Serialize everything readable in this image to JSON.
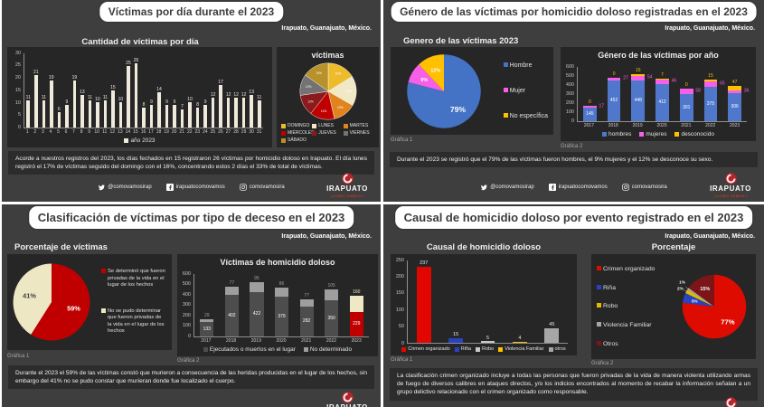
{
  "page": {
    "background": "#3e3e3e",
    "divider": "#ffffff",
    "chart_panel_bg": "#262626"
  },
  "footer": {
    "twitter_handle": "@comovamosirap",
    "facebook_handle": "irapuatocomovamos",
    "instagram_handle": "comovamosira",
    "logo_title": "IRAPUATO",
    "logo_subtitle": "¿CÓMO VAMOS?"
  },
  "panels": [
    {
      "title": "Víctimas por día durante el 2023",
      "location": "Irapuato, Guanajuato, México.",
      "note": "Acorde a nuestros registros del 2023, los días fechados en 15 registraron 26 víctimas por homicidio doloso en Irapuato. El día lunes registró el 17% de víctimas seguido del domingo con el 16%, concentrando estos 2 días el 33% de total de víctimas."
    },
    {
      "title": "Género de las víctimas por homicidio doloso registradas en el 2023",
      "location": "Irapuato, Guanajuato, México.",
      "grafica1": "Gráfica 1",
      "grafica2": "Gráfica 2",
      "note": "Durante el 2023 se registró que el 79% de las víctimas fueron hombres, el 9% mujeres y el 12% se desconoce su sexo."
    },
    {
      "title": "Clasificación de víctimas por tipo de deceso en el 2023",
      "location": "Irapuato, Guanajuato, México.",
      "grafica1": "Gráfica 1",
      "grafica2": "Gráfica 2",
      "note": "Durante el 2023 el 59% de las víctimas constó que murieron a consecuencia de las heridas producidas en el lugar de los hechos, sin embargo del 41% no se pudo constar que murieran donde fue localizado el cuerpo."
    },
    {
      "title": "Causal de homicidio doloso por evento registrado en el 2023",
      "location": "Irapuato, Guanajuato, México.",
      "grafica1": "Gráfica 1",
      "grafica2": "Gráfica 2",
      "note": "La clasificación crimen organizado incluye a todas las personas que fueron privadas de la vida de manera violenta utilizando armas de fuego de diversos calibres en ataques directos, y/o los indicios encontrados al momento de recabar la información señalan a un grupo delictivo relacionado con el crimen organizado como responsable."
    }
  ],
  "chart_data": [
    {
      "id": "victimas-por-dia",
      "type": "bar",
      "title": "Cantidad de víctimas por día",
      "categories": [
        "1",
        "2",
        "3",
        "4",
        "5",
        "6",
        "7",
        "8",
        "9",
        "10",
        "11",
        "12",
        "13",
        "14",
        "15",
        "16",
        "17",
        "18",
        "19",
        "20",
        "21",
        "22",
        "23",
        "24",
        "25",
        "26",
        "27",
        "28",
        "29",
        "30",
        "31"
      ],
      "values": [
        11,
        21,
        11,
        19,
        6,
        9,
        19,
        13,
        11,
        10,
        11,
        15,
        10,
        25,
        26,
        8,
        9,
        14,
        9,
        9,
        7,
        10,
        8,
        9,
        12,
        17,
        12,
        12,
        12,
        13,
        11
      ],
      "ylim": [
        0,
        30
      ],
      "yticks": [
        0,
        5,
        10,
        15,
        20,
        25,
        30
      ],
      "bar_color": "#efeadb",
      "show_xlabels": true,
      "legend": [
        {
          "label": "año 2023",
          "color": "#efeadb"
        }
      ]
    },
    {
      "id": "victimas-dia-semana",
      "type": "pie",
      "title": "víctimas",
      "label_size": 5.5,
      "label_r": 0.72,
      "stroke": "#ffffff",
      "stroke_w": 0.7,
      "legend_pos": "bottom",
      "legend_class": "grid",
      "slices": [
        {
          "label": "DOMINGO",
          "value": 16,
          "color": "#eebb2d"
        },
        {
          "label": "LUNES",
          "value": 17,
          "color": "#f1e9c6"
        },
        {
          "label": "MARTES",
          "value": 13,
          "color": "#e2841e"
        },
        {
          "label": "MIÉRCOLES",
          "value": 14,
          "color": "#c00000"
        },
        {
          "label": "JUEVES",
          "value": 12,
          "color": "#8b1a1d"
        },
        {
          "label": "VIERNES",
          "value": 12,
          "color": "#737373"
        },
        {
          "label": "SÁBADO",
          "value": 15,
          "color": "#b8912a"
        }
      ]
    },
    {
      "id": "genero-victimas-2023",
      "type": "pie",
      "title": "Genero de las víctimas 2023",
      "bold_labels": true,
      "label_r": 0.62,
      "legend_pos": "right",
      "legend_class": "col",
      "slices": [
        {
          "label": "Hombre",
          "value": 79,
          "color": "#4472c4",
          "label_size": 11
        },
        {
          "label": "Mujer",
          "value": 9,
          "color": "#f75fe8",
          "label_size": 7
        },
        {
          "label": "No específica",
          "value": 12,
          "color": "#ffc000",
          "label_size": 7
        }
      ]
    },
    {
      "id": "genero-por-anio",
      "type": "stacked",
      "title": "Género de las víctimas por año",
      "categories": [
        "2017",
        "2018",
        "2019",
        "2020",
        "2021",
        "2022",
        "2023"
      ],
      "ylim": [
        0,
        600
      ],
      "yticks": [
        0,
        100,
        200,
        300,
        400,
        500,
        600
      ],
      "series": [
        {
          "name": "hombres",
          "color": "#4f78cc",
          "label_placement": "inside",
          "values": [
            145,
            452,
            448,
            412,
            301,
            375,
            306
          ]
        },
        {
          "name": "mujeres",
          "color": "#f75fe8",
          "label_placement": "right",
          "values": [
            17,
            27,
            54,
            46,
            58,
            65,
            36
          ]
        },
        {
          "name": "desconocido",
          "color": "#ffc000",
          "label_placement": "above",
          "values": [
            0,
            0,
            15,
            7,
            0,
            15,
            47
          ]
        }
      ]
    },
    {
      "id": "tipo-deceso",
      "type": "pie",
      "title": "Porcentaje de víctimas",
      "bold_labels": true,
      "label_r": 0.6,
      "legend_pos": "right",
      "legend_class": "col small",
      "slices": [
        {
          "label": "Se determinó que fueron privadas de la vida en el lugar de los hechos",
          "value": 59,
          "color": "#c00000",
          "label_size": 9
        },
        {
          "label": "No se pudo determinar que fueron privadas de la vida en el lugar de los hechos",
          "value": 41,
          "color": "#eee7c3",
          "label_size": 9,
          "text_color": "#3f3f3f"
        }
      ]
    },
    {
      "id": "victimas-homicidio-doloso",
      "type": "stacked",
      "title": "Víctimas de homicidio doloso",
      "categories": [
        "2017",
        "2018",
        "2019",
        "2020",
        "2021",
        "2022",
        "2023"
      ],
      "ylim": [
        0,
        600
      ],
      "yticks": [
        0,
        100,
        200,
        300,
        400,
        500,
        600
      ],
      "series": [
        {
          "name": "Ejecutados o muertos en el lugar",
          "color": "#4d4d4d",
          "colors": {
            "2023": "#c00000"
          },
          "label_placement": "inside",
          "values": [
            133,
            402,
            422,
            379,
            282,
            350,
            229
          ]
        },
        {
          "name": "No determinado",
          "color": "#9e9e9e",
          "colors": {
            "2023": "#efe8c4"
          },
          "label_placement": "above",
          "values": [
            29,
            77,
            95,
            86,
            77,
            105,
            160
          ]
        }
      ]
    },
    {
      "id": "causal-homicidio",
      "type": "bar",
      "title": "Causal de homicidio doloso",
      "categories": [
        "Crimen organizado",
        "Riña",
        "Robo",
        "Violencia Familiar",
        "otros"
      ],
      "values": [
        237,
        15,
        5,
        4,
        45
      ],
      "colors": [
        "#e10600",
        "#2743c0",
        "#c9c9c9",
        "#ffc000",
        "#a6a6a6"
      ],
      "ylim": [
        0,
        250
      ],
      "yticks": [
        0,
        50,
        100,
        150,
        200,
        250
      ],
      "show_xlabels": false,
      "legend_class": "lg-sm"
    },
    {
      "id": "causal-porcentaje",
      "type": "pie",
      "title": "Porcentaje",
      "bold_labels": true,
      "label_r": 0.64,
      "legend_pos": "left",
      "legend_class": "col p4l",
      "slices": [
        {
          "label": "Crimen organizado",
          "value": 77,
          "color": "#dd0b00",
          "label_size": 10
        },
        {
          "label": "Riña",
          "value": 5,
          "color": "#2743c0",
          "label_size": 6
        },
        {
          "label": "Robo",
          "value": 2,
          "color": "#e0bb00",
          "outside": true
        },
        {
          "label": "Violencia Familiar",
          "value": 1,
          "color": "#a6a6a6",
          "outside": true
        },
        {
          "label": "Otros",
          "value": 15,
          "color": "#7b1517",
          "label_size": 7
        }
      ]
    }
  ]
}
